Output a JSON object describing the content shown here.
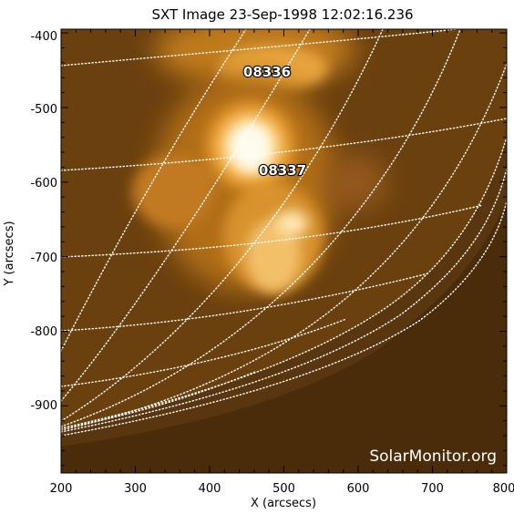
{
  "title": "SXT Image 23-Sep-1998 12:02:16.236",
  "x_axis": {
    "label": "X (arcsecs)",
    "range": [
      200,
      800
    ],
    "ticks": [
      "200",
      "300",
      "400",
      "500",
      "600",
      "700",
      "800"
    ]
  },
  "y_axis": {
    "label": "Y (arcsecs)",
    "range": [
      -990,
      -395
    ],
    "ticks": [
      "-400",
      "-500",
      "-600",
      "-700",
      "-800",
      "-900"
    ]
  },
  "active_regions": [
    {
      "label": "08336",
      "x": 470,
      "y": -448
    },
    {
      "label": "08337",
      "x": 490,
      "y": -583
    }
  ],
  "credit": "SolarMonitor.org",
  "colors": {
    "background": "#3d2508",
    "glow": "#fff6d8",
    "grid": "#ffffff",
    "frame": "#000000"
  }
}
